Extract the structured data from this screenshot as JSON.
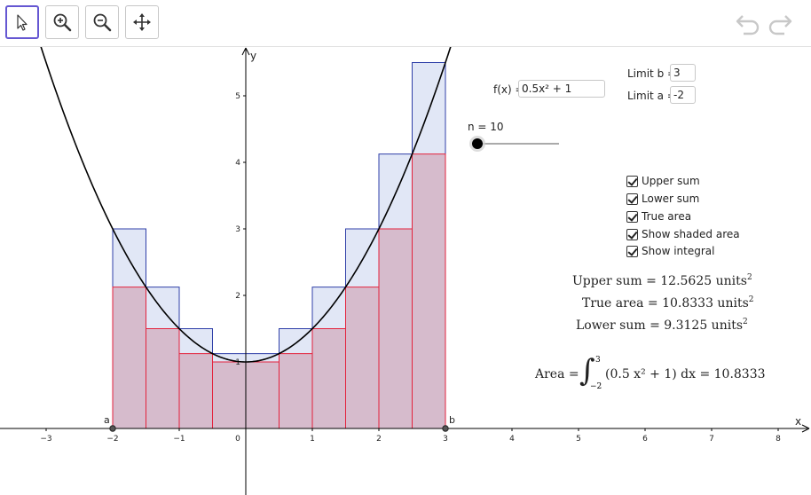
{
  "toolbar": {
    "tools": [
      "select-tool",
      "zoom-in-tool",
      "zoom-out-tool",
      "move-graphics-view-tool"
    ],
    "active_tool": "select-tool",
    "undo_icon": "undo-icon",
    "redo_icon": "redo-icon"
  },
  "controls": {
    "function_label": "f(x) =",
    "function_value": "0.5x² + 1",
    "limit_b_label": "Limit b =",
    "limit_b_value": "3",
    "limit_a_label": "Limit a =",
    "limit_a_value": "-2",
    "n_label": "n = 10",
    "n_value": 10,
    "checkboxes": [
      {
        "label": "Upper sum",
        "checked": true
      },
      {
        "label": "Lower sum",
        "checked": true
      },
      {
        "label": "True area",
        "checked": true
      },
      {
        "label": "Show shaded area",
        "checked": true
      },
      {
        "label": "Show integral",
        "checked": true
      }
    ]
  },
  "results": {
    "upper_sum_text": "Upper sum = 12.5625 units",
    "true_area_text": "True area = 10.8333 units",
    "lower_sum_text": "Lower sum = 9.3125 units",
    "units_exp": "2",
    "area_lead": "Area =",
    "integral_upper": "3",
    "integral_lower": "−2",
    "integral_body": "(0.5 x² + 1) dx = 10.8333"
  },
  "graph": {
    "x_axis_label": "x",
    "y_axis_label": "y",
    "x_ticks": [
      "−3",
      "−2",
      "−1",
      "0",
      "1",
      "2",
      "3",
      "4",
      "5",
      "6",
      "7",
      "8"
    ],
    "y_ticks": [
      "1",
      "2",
      "3",
      "4",
      "5"
    ],
    "point_a_label": "a",
    "point_b_label": "b",
    "colors": {
      "upper_stroke": "#2f3fa8",
      "upper_fill": "#c8d3ee",
      "lower_stroke": "#e3223c",
      "lower_fill": "#cf9fb1",
      "curve": "#000000",
      "axis": "#000000",
      "slider_accent": "#000000"
    }
  },
  "chart_data": {
    "type": "area",
    "title": "",
    "function": "0.5x^2 + 1",
    "a": -2,
    "b": 3,
    "n": 10,
    "dx": 0.5,
    "xlabel": "x",
    "ylabel": "y",
    "xlim": [
      -3.7,
      8.4
    ],
    "ylim": [
      -0.95,
      5.8
    ],
    "subinterval_left_x": [
      -2,
      -1.5,
      -1,
      -0.5,
      0,
      0.5,
      1,
      1.5,
      2,
      2.5
    ],
    "series": [
      {
        "name": "Upper sum",
        "values": [
          3,
          2.125,
          1.5,
          1.125,
          1.125,
          1.5,
          2.125,
          3,
          4.125,
          5.5
        ]
      },
      {
        "name": "Lower sum",
        "values": [
          2.125,
          1.5,
          1.125,
          1,
          1,
          1.125,
          1.5,
          2.125,
          3,
          4.125
        ]
      }
    ],
    "upper_sum": 12.5625,
    "lower_sum": 9.3125,
    "true_area": 10.8333
  }
}
